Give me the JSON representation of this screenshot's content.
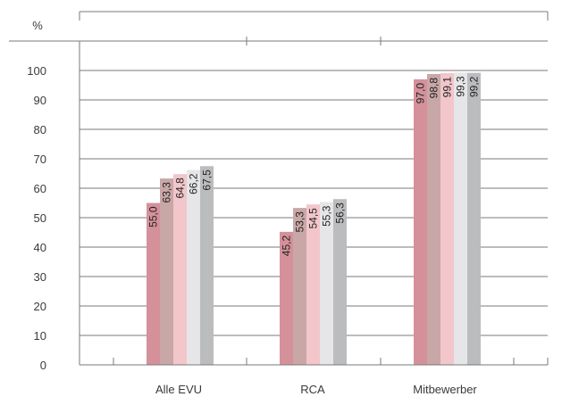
{
  "chart_data": {
    "type": "bar",
    "unit_label": "%",
    "categories": [
      "Alle EVU",
      "RCA",
      "Mitbewerber"
    ],
    "series": [
      {
        "color": "#d4919a",
        "values": [
          55.0,
          45.2,
          97.0
        ],
        "labels": [
          "55,0",
          "45,2",
          "97,0"
        ]
      },
      {
        "color": "#c9a7a7",
        "values": [
          63.3,
          53.3,
          98.8
        ],
        "labels": [
          "63,3",
          "53,3",
          "98,8"
        ]
      },
      {
        "color": "#f2c6ca",
        "values": [
          64.8,
          54.5,
          99.1
        ],
        "labels": [
          "64,8",
          "54,5",
          "99,1"
        ]
      },
      {
        "color": "#e6e6e8",
        "values": [
          66.2,
          55.3,
          99.3
        ],
        "labels": [
          "66,2",
          "55,3",
          "99,3"
        ]
      },
      {
        "color": "#bbbcbe",
        "values": [
          67.5,
          56.3,
          99.2
        ],
        "labels": [
          "67,5",
          "56,3",
          "99,2"
        ]
      }
    ],
    "ylim": [
      0,
      100
    ],
    "yticks": [
      0,
      10,
      20,
      30,
      40,
      50,
      60,
      70,
      80,
      90,
      100
    ],
    "grid": true,
    "legend": "none"
  }
}
